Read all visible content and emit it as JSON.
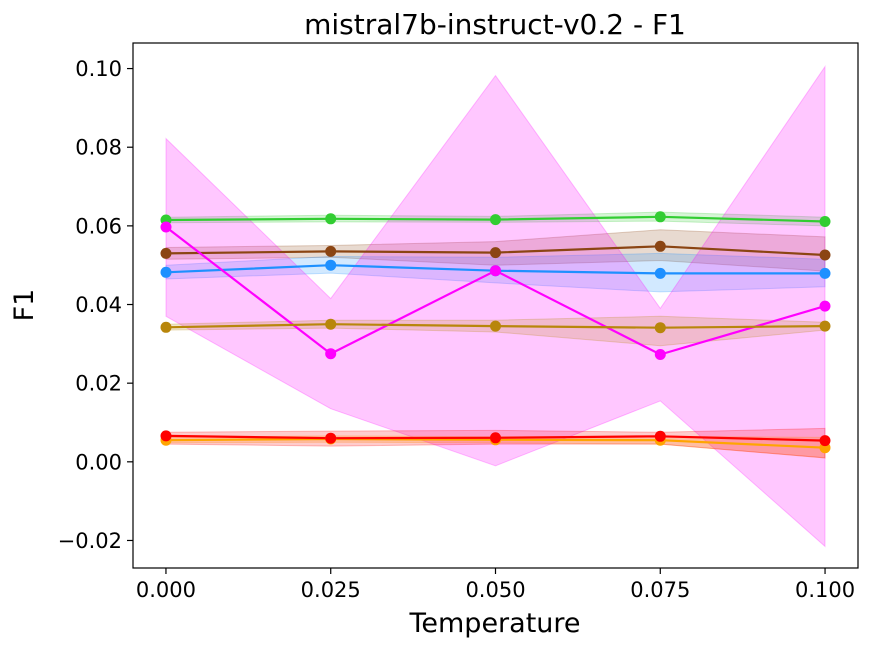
{
  "chart_data": {
    "type": "line",
    "title": "mistral7b-instruct-v0.2 - F1",
    "xlabel": "Temperature",
    "ylabel": "F1",
    "x": [
      0.0,
      0.025,
      0.05,
      0.075,
      0.1
    ],
    "xlim": [
      -0.005,
      0.105
    ],
    "ylim": [
      -0.027,
      0.1065
    ],
    "xticks": [
      {
        "v": 0.0,
        "label": "0.000"
      },
      {
        "v": 0.025,
        "label": "0.025"
      },
      {
        "v": 0.05,
        "label": "0.050"
      },
      {
        "v": 0.075,
        "label": "0.075"
      },
      {
        "v": 0.1,
        "label": "0.100"
      }
    ],
    "yticks": [
      {
        "v": -0.02,
        "label": "−0.02"
      },
      {
        "v": 0.0,
        "label": "0.00"
      },
      {
        "v": 0.02,
        "label": "0.02"
      },
      {
        "v": 0.04,
        "label": "0.04"
      },
      {
        "v": 0.06,
        "label": "0.06"
      },
      {
        "v": 0.08,
        "label": "0.08"
      },
      {
        "v": 0.1,
        "label": "0.10"
      }
    ],
    "grid": false,
    "series": [
      {
        "name": "green",
        "color": "#32cd32",
        "values": [
          0.0615,
          0.0618,
          0.0616,
          0.0623,
          0.0611
        ],
        "lower": [
          0.0608,
          0.061,
          0.0609,
          0.0612,
          0.06
        ],
        "upper": [
          0.0622,
          0.0627,
          0.0624,
          0.0635,
          0.0622
        ]
      },
      {
        "name": "brown",
        "color": "#8b4513",
        "values": [
          0.053,
          0.0535,
          0.0532,
          0.0548,
          0.0526
        ],
        "lower": [
          0.0515,
          0.052,
          0.05,
          0.0512,
          0.0485
        ],
        "upper": [
          0.0545,
          0.055,
          0.056,
          0.059,
          0.0572
        ]
      },
      {
        "name": "blue",
        "color": "#1e90ff",
        "values": [
          0.0482,
          0.05,
          0.0486,
          0.0479,
          0.0479
        ],
        "lower": [
          0.0465,
          0.048,
          0.0455,
          0.0432,
          0.0445
        ],
        "upper": [
          0.05,
          0.0522,
          0.052,
          0.053,
          0.0515
        ]
      },
      {
        "name": "magenta",
        "color": "#ff00ff",
        "values": [
          0.0597,
          0.0275,
          0.0486,
          0.0273,
          0.0396
        ],
        "lower": [
          0.037,
          0.0135,
          -0.001,
          0.0155,
          -0.0215
        ],
        "upper": [
          0.0822,
          0.0415,
          0.0982,
          0.039,
          0.1005
        ]
      },
      {
        "name": "gold",
        "color": "#b8860b",
        "values": [
          0.0342,
          0.035,
          0.0345,
          0.0341,
          0.0345
        ],
        "lower": [
          0.0335,
          0.034,
          0.033,
          0.0295,
          0.0335
        ],
        "upper": [
          0.035,
          0.036,
          0.036,
          0.037,
          0.0355
        ]
      },
      {
        "name": "orange",
        "color": "#ffa500",
        "values": [
          0.0055,
          0.0058,
          0.0056,
          0.0055,
          0.0036
        ],
        "lower": [
          0.0048,
          0.005,
          0.0048,
          0.0045,
          0.001
        ],
        "upper": [
          0.0062,
          0.0066,
          0.0064,
          0.0065,
          0.0062
        ]
      },
      {
        "name": "red",
        "color": "#ff0000",
        "values": [
          0.0066,
          0.006,
          0.0061,
          0.0065,
          0.0054
        ],
        "lower": [
          0.0045,
          0.004,
          0.0045,
          0.0045,
          0.001
        ],
        "upper": [
          0.0075,
          0.0078,
          0.008,
          0.0075,
          0.0085
        ]
      }
    ]
  }
}
